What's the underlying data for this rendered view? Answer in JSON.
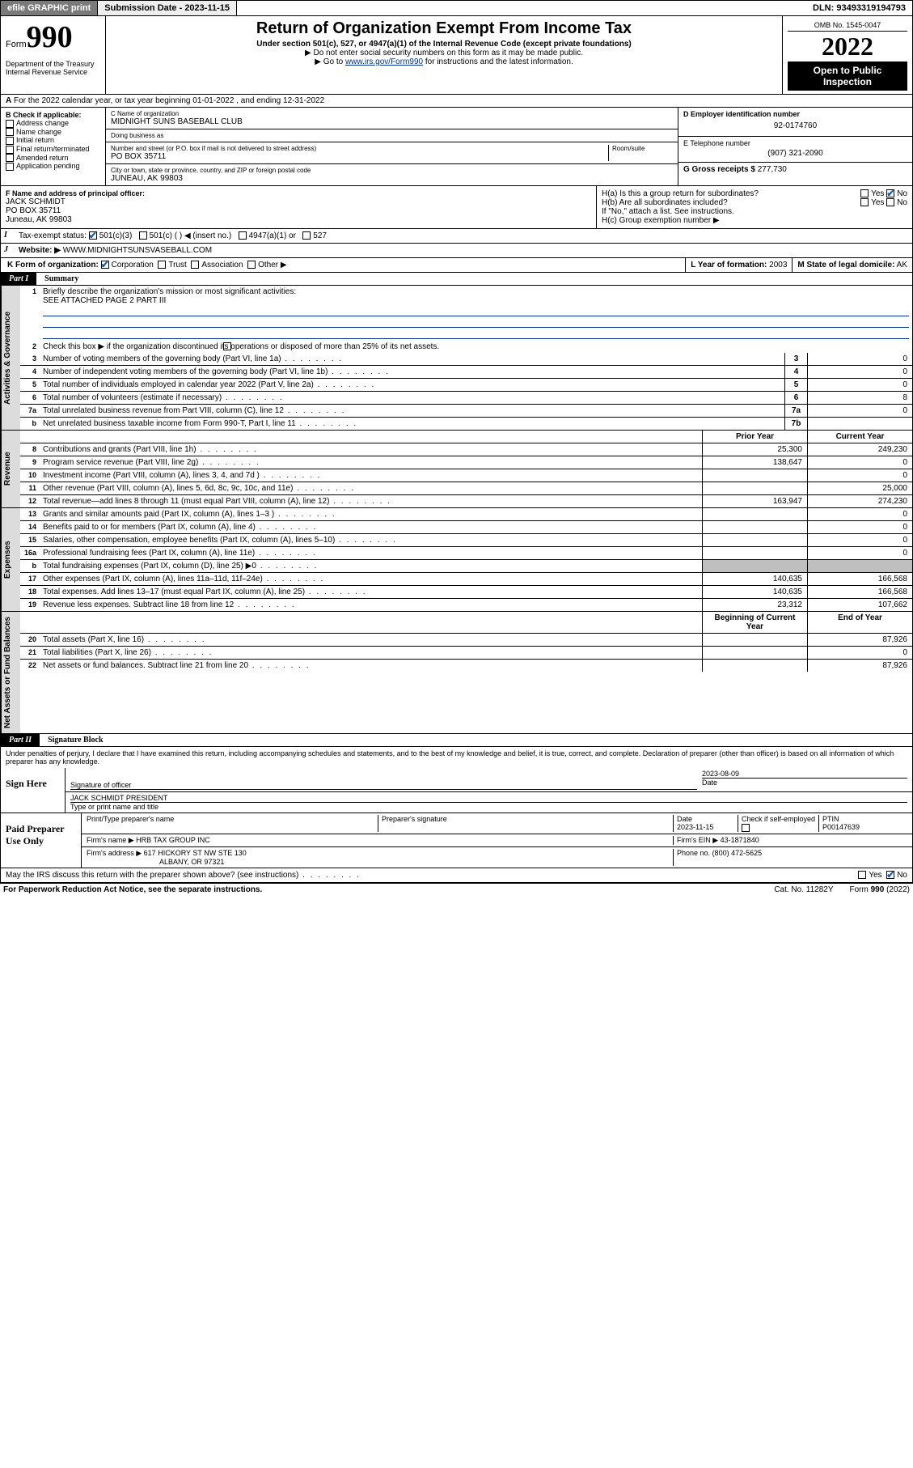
{
  "topbar": {
    "efile": "efile GRAPHIC print",
    "submission": "Submission Date - 2023-11-15",
    "dln": "DLN: 93493319194793"
  },
  "header": {
    "form_prefix": "Form",
    "form_num": "990",
    "title": "Return of Organization Exempt From Income Tax",
    "sub1": "Under section 501(c), 527, or 4947(a)(1) of the Internal Revenue Code (except private foundations)",
    "sub2": "▶ Do not enter social security numbers on this form as it may be made public.",
    "sub3_pre": "▶ Go to ",
    "sub3_link": "www.irs.gov/Form990",
    "sub3_post": " for instructions and the latest information.",
    "omb": "OMB No. 1545-0047",
    "year": "2022",
    "open": "Open to Public Inspection",
    "dept": "Department of the Treasury Internal Revenue Service"
  },
  "section_a": "For the 2022 calendar year, or tax year beginning 01-01-2022   , and ending 12-31-2022",
  "section_b": {
    "label": "B Check if applicable:",
    "opts": [
      "Address change",
      "Name change",
      "Initial return",
      "Final return/terminated",
      "Amended return",
      "Application pending"
    ]
  },
  "section_c": {
    "label_name": "C Name of organization",
    "name": "MIDNIGHT SUNS BASEBALL CLUB",
    "dba_label": "Doing business as",
    "dba": "",
    "addr_label": "Number and street (or P.O. box if mail is not delivered to street address)",
    "room_label": "Room/suite",
    "addr": "PO BOX 35711",
    "city_label": "City or town, state or province, country, and ZIP or foreign postal code",
    "city": "JUNEAU, AK  99803"
  },
  "section_d": {
    "label": "D Employer identification number",
    "val": "92-0174760"
  },
  "section_e": {
    "label": "E Telephone number",
    "val": "(907) 321-2090"
  },
  "section_g": {
    "label": "G Gross receipts $",
    "val": "277,730"
  },
  "section_f": {
    "label": "F Name and address of principal officer:",
    "name": "JACK SCHMIDT",
    "addr1": "PO BOX 35711",
    "addr2": "Juneau, AK  99803"
  },
  "section_h": {
    "ha_label": "H(a)  Is this a group return for subordinates?",
    "ha_yes": "Yes",
    "ha_no": "No",
    "hb_label": "H(b)  Are all subordinates included?",
    "hb_yes": "Yes",
    "hb_no": "No",
    "hb_note": "If \"No,\" attach a list. See instructions.",
    "hc_label": "H(c)  Group exemption number ▶"
  },
  "section_i": {
    "label": "Tax-exempt status:",
    "o1": "501(c)(3)",
    "o2": "501(c) (  ) ◀ (insert no.)",
    "o3": "4947(a)(1) or",
    "o4": "527"
  },
  "section_j": {
    "label": "Website: ▶",
    "val": "WWW.MIDNIGHTSUNSVASEBALL.COM"
  },
  "section_k": {
    "label": "K Form of organization:",
    "o1": "Corporation",
    "o2": "Trust",
    "o3": "Association",
    "o4": "Other ▶"
  },
  "section_l": {
    "label": "L Year of formation:",
    "val": "2003"
  },
  "section_m": {
    "label": "M State of legal domicile:",
    "val": "AK"
  },
  "part1": {
    "num": "Part I",
    "name": "Summary"
  },
  "vtabs": {
    "gov": "Activities & Governance",
    "rev": "Revenue",
    "exp": "Expenses",
    "net": "Net Assets or Fund Balances"
  },
  "gov_lines": {
    "l1": "Briefly describe the organization's mission or most significant activities:",
    "l1v": "SEE ATTACHED PAGE 2 PART III",
    "l2": "Check this box ▶        if the organization discontinued its operations or disposed of more than 25% of its net assets.",
    "l3": "Number of voting members of the governing body (Part VI, line 1a)",
    "l4": "Number of independent voting members of the governing body (Part VI, line 1b)",
    "l5": "Total number of individuals employed in calendar year 2022 (Part V, line 2a)",
    "l6": "Total number of volunteers (estimate if necessary)",
    "l7a": "Total unrelated business revenue from Part VIII, column (C), line 12",
    "l7b": "Net unrelated business taxable income from Form 990-T, Part I, line 11",
    "v3": "0",
    "v4": "0",
    "v5": "0",
    "v6": "8",
    "v7a": "0",
    "v7b": ""
  },
  "col_hdr": {
    "prior": "Prior Year",
    "curr": "Current Year",
    "beg": "Beginning of Current Year",
    "end": "End of Year"
  },
  "rev_lines": [
    {
      "n": "8",
      "t": "Contributions and grants (Part VIII, line 1h)",
      "p": "25,300",
      "c": "249,230"
    },
    {
      "n": "9",
      "t": "Program service revenue (Part VIII, line 2g)",
      "p": "138,647",
      "c": "0"
    },
    {
      "n": "10",
      "t": "Investment income (Part VIII, column (A), lines 3, 4, and 7d )",
      "p": "",
      "c": "0"
    },
    {
      "n": "11",
      "t": "Other revenue (Part VIII, column (A), lines 5, 6d, 8c, 9c, 10c, and 11e)",
      "p": "",
      "c": "25,000"
    },
    {
      "n": "12",
      "t": "Total revenue—add lines 8 through 11 (must equal Part VIII, column (A), line 12)",
      "p": "163,947",
      "c": "274,230"
    }
  ],
  "exp_lines": [
    {
      "n": "13",
      "t": "Grants and similar amounts paid (Part IX, column (A), lines 1–3 )",
      "p": "",
      "c": "0"
    },
    {
      "n": "14",
      "t": "Benefits paid to or for members (Part IX, column (A), line 4)",
      "p": "",
      "c": "0"
    },
    {
      "n": "15",
      "t": "Salaries, other compensation, employee benefits (Part IX, column (A), lines 5–10)",
      "p": "",
      "c": "0"
    },
    {
      "n": "16a",
      "t": "Professional fundraising fees (Part IX, column (A), line 11e)",
      "p": "",
      "c": "0"
    },
    {
      "n": "b",
      "t": "Total fundraising expenses (Part IX, column (D), line 25) ▶0",
      "p": "",
      "c": ""
    },
    {
      "n": "17",
      "t": "Other expenses (Part IX, column (A), lines 11a–11d, 11f–24e)",
      "p": "140,635",
      "c": "166,568"
    },
    {
      "n": "18",
      "t": "Total expenses. Add lines 13–17 (must equal Part IX, column (A), line 25)",
      "p": "140,635",
      "c": "166,568"
    },
    {
      "n": "19",
      "t": "Revenue less expenses. Subtract line 18 from line 12",
      "p": "23,312",
      "c": "107,662"
    }
  ],
  "net_lines": [
    {
      "n": "20",
      "t": "Total assets (Part X, line 16)",
      "p": "",
      "c": "87,926"
    },
    {
      "n": "21",
      "t": "Total liabilities (Part X, line 26)",
      "p": "",
      "c": "0"
    },
    {
      "n": "22",
      "t": "Net assets or fund balances. Subtract line 21 from line 20",
      "p": "",
      "c": "87,926"
    }
  ],
  "part2": {
    "num": "Part II",
    "name": "Signature Block"
  },
  "penalties": "Under penalties of perjury, I declare that I have examined this return, including accompanying schedules and statements, and to the best of my knowledge and belief, it is true, correct, and complete. Declaration of preparer (other than officer) is based on all information of which preparer has any knowledge.",
  "sign": {
    "here": "Sign Here",
    "sig_of": "Signature of officer",
    "date_lbl": "Date",
    "date": "2023-08-09",
    "name": "JACK SCHMIDT PRESIDENT",
    "name_lbl": "Type or print name and title"
  },
  "paid": {
    "label": "Paid Preparer Use Only",
    "h1": "Print/Type preparer's name",
    "h2": "Preparer's signature",
    "h3": "Date",
    "h3v": "2023-11-15",
    "h4": "Check        if self-employed",
    "h5": "PTIN",
    "h5v": "P00147639",
    "firm_lbl": "Firm's name    ▶",
    "firm": "HRB TAX GROUP INC",
    "ein_lbl": "Firm's EIN ▶",
    "ein": "43-1871840",
    "addr_lbl": "Firm's address ▶",
    "addr1": "617 HICKORY ST NW STE 130",
    "addr2": "ALBANY, OR  97321",
    "phone_lbl": "Phone no.",
    "phone": "(800) 472-5625"
  },
  "discuss": {
    "t": "May the IRS discuss this return with the preparer shown above? (see instructions)",
    "yes": "Yes",
    "no": "No"
  },
  "footer": {
    "l": "For Paperwork Reduction Act Notice, see the separate instructions.",
    "m": "Cat. No. 11282Y",
    "r": "Form 990 (2022)"
  },
  "colors": {
    "link": "#003399",
    "check": "#1060c0",
    "shade": "#bfbfbf",
    "vtab": "#dcdcdc"
  }
}
